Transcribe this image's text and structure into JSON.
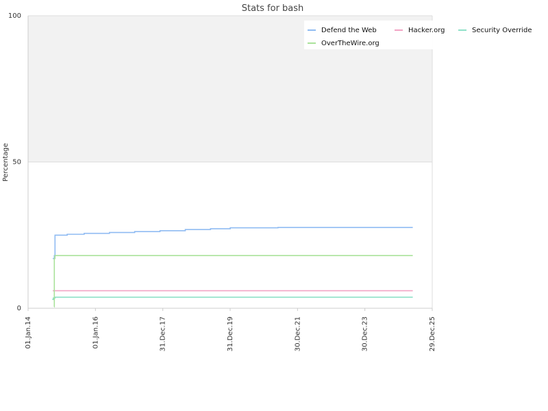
{
  "chart_data": {
    "type": "line",
    "title": "Stats for bash",
    "ylabel": "Percentage",
    "xlabel": "",
    "ylim": [
      0,
      100
    ],
    "y_ticks": [
      0,
      50,
      100
    ],
    "xlim": [
      "2014-01-01",
      "2025-12-29"
    ],
    "x_ticks": [
      {
        "date": "2014-01-01",
        "label": "01.Jan.14"
      },
      {
        "date": "2016-01-01",
        "label": "01.Jan.16"
      },
      {
        "date": "2017-12-31",
        "label": "31.Dec.17"
      },
      {
        "date": "2019-12-31",
        "label": "31.Dec.19"
      },
      {
        "date": "2021-12-30",
        "label": "30.Dec.21"
      },
      {
        "date": "2023-12-30",
        "label": "30.Dec.23"
      },
      {
        "date": "2025-12-29",
        "label": "29.Dec.25"
      }
    ],
    "shaded_band": [
      50,
      100
    ],
    "legend_position": "top-right",
    "series": [
      {
        "name": "Defend the Web",
        "color": "#8fbbf2",
        "points": [
          {
            "x": "2014-09-25",
            "y": 17
          },
          {
            "x": "2014-10-12",
            "y": 18
          },
          {
            "x": "2014-10-20",
            "y": 25
          },
          {
            "x": "2015-03-01",
            "y": 25.3
          },
          {
            "x": "2015-09-01",
            "y": 25.6
          },
          {
            "x": "2016-06-01",
            "y": 25.9
          },
          {
            "x": "2017-03-01",
            "y": 26.2
          },
          {
            "x": "2017-12-01",
            "y": 26.5
          },
          {
            "x": "2018-09-01",
            "y": 26.9
          },
          {
            "x": "2019-06-01",
            "y": 27.2
          },
          {
            "x": "2020-01-01",
            "y": 27.5
          },
          {
            "x": "2021-06-01",
            "y": 27.6
          },
          {
            "x": "2025-06-01",
            "y": 27.6
          }
        ]
      },
      {
        "name": "Hacker.org",
        "color": "#f2a3c4",
        "points": [
          {
            "x": "2014-09-25",
            "y": 6
          },
          {
            "x": "2025-06-01",
            "y": 6
          }
        ]
      },
      {
        "name": "Security Override",
        "color": "#8fe0c8",
        "points": [
          {
            "x": "2014-09-20",
            "y": 3
          },
          {
            "x": "2014-10-01",
            "y": 3.5
          },
          {
            "x": "2014-10-20",
            "y": 3.8
          },
          {
            "x": "2025-06-01",
            "y": 3.8
          }
        ]
      },
      {
        "name": "OverTheWire.org",
        "color": "#a9e29a",
        "points": [
          {
            "x": "2014-10-10",
            "y": 0.5
          },
          {
            "x": "2014-10-12",
            "y": 17
          },
          {
            "x": "2014-10-20",
            "y": 18
          },
          {
            "x": "2025-06-01",
            "y": 18
          }
        ]
      }
    ]
  }
}
